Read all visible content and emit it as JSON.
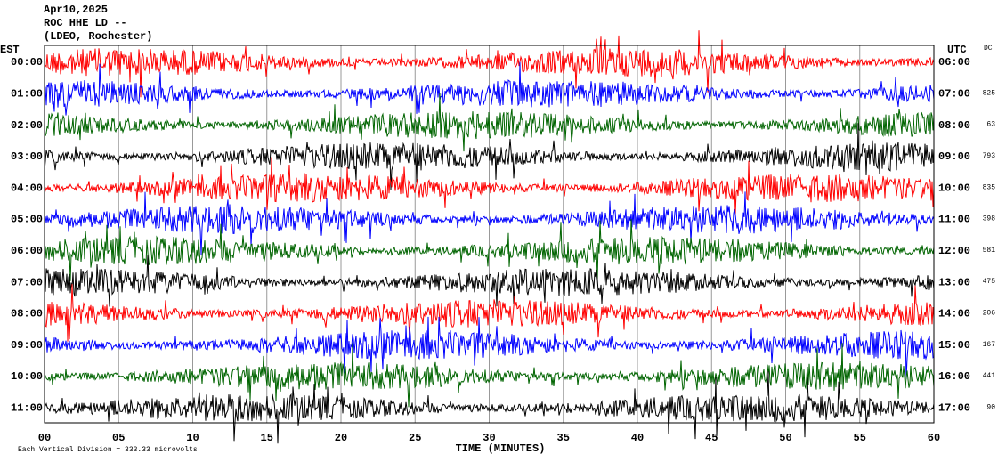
{
  "header": {
    "date": "Apr10,2025",
    "station": "ROC HHE LD --",
    "network": "(LDEO, Rochester)"
  },
  "left_axis": {
    "title": "EST",
    "labels": [
      "00:00",
      "01:00",
      "02:00",
      "03:00",
      "04:00",
      "05:00",
      "06:00",
      "07:00",
      "08:00",
      "09:00",
      "10:00",
      "11:00"
    ]
  },
  "right_axis": {
    "title": "UTC",
    "labels": [
      "06:00",
      "07:00",
      "08:00",
      "09:00",
      "10:00",
      "11:00",
      "12:00",
      "13:00",
      "14:00",
      "15:00",
      "16:00",
      "17:00"
    ]
  },
  "dc": {
    "title": "DC",
    "values": [
      null,
      825,
      63,
      793,
      835,
      398,
      581,
      475,
      206,
      167,
      441,
      90
    ]
  },
  "x_axis": {
    "title": "TIME (MINUTES)",
    "ticks": [
      "00",
      "05",
      "10",
      "15",
      "20",
      "25",
      "30",
      "35",
      "40",
      "45",
      "50",
      "55",
      "60"
    ]
  },
  "footer": "Each Vertical Division = 333.33 microvolts",
  "trace_colors": [
    "#ff0000",
    "#0000ff",
    "#006400",
    "#000000"
  ]
}
